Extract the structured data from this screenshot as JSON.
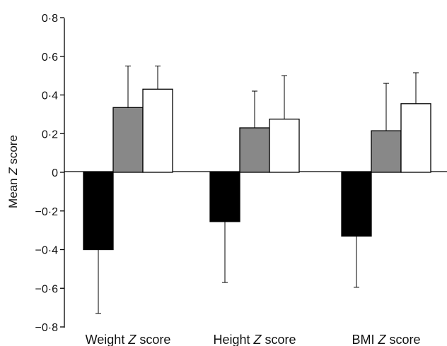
{
  "chart_data": {
    "type": "bar",
    "title": "",
    "xlabel": "",
    "ylabel": {
      "pre": "Mean ",
      "italic": "Z",
      "post": " score"
    },
    "ylim": [
      -0.8,
      0.8
    ],
    "yticks": [
      0.8,
      0.6,
      0.4,
      0.2,
      0,
      -0.2,
      -0.4,
      -0.6,
      -0.8
    ],
    "ytick_labels": [
      "0·8",
      "0·6",
      "0·4",
      "0·2",
      "0",
      "−0·2",
      "−0·4",
      "−0·6",
      "−0·8"
    ],
    "categories": [
      {
        "pre": "Weight ",
        "italic": "Z",
        "post": " score"
      },
      {
        "pre": "Height ",
        "italic": "Z",
        "post": " score"
      },
      {
        "pre": "BMI ",
        "italic": "Z",
        "post": " score"
      }
    ],
    "series": [
      {
        "color": "#000000",
        "values": [
          -0.4,
          -0.255,
          -0.33
        ],
        "error_lower": [
          0.33,
          0.315,
          0.265
        ]
      },
      {
        "color": "#888888",
        "values": [
          0.335,
          0.23,
          0.215
        ],
        "error_upper": [
          0.215,
          0.19,
          0.245
        ]
      },
      {
        "color": "#ffffff",
        "values": [
          0.43,
          0.275,
          0.355
        ],
        "error_upper": [
          0.12,
          0.225,
          0.16
        ]
      }
    ],
    "grid": false,
    "legend": "none"
  }
}
